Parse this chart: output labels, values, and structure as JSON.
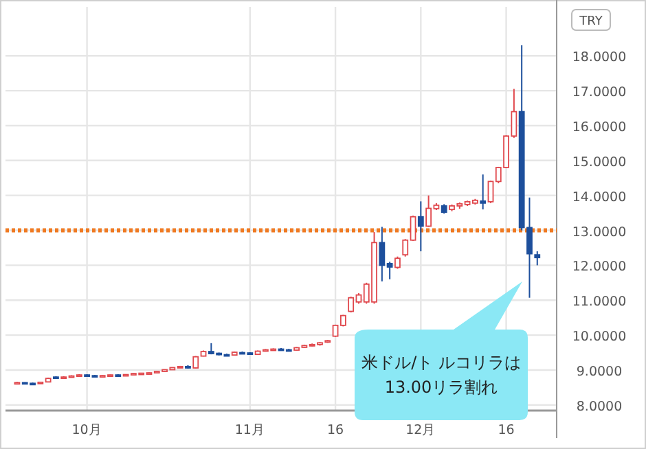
{
  "chart_data": {
    "type": "candlestick",
    "categories": [
      null,
      null,
      null,
      null,
      null,
      null,
      null,
      null,
      null,
      "10月",
      null,
      null,
      null,
      null,
      null,
      null,
      null,
      null,
      null,
      null,
      null,
      null,
      null,
      null,
      null,
      null,
      null,
      null,
      null,
      null,
      "11月",
      null,
      null,
      null,
      null,
      null,
      null,
      null,
      null,
      null,
      null,
      "16",
      null,
      null,
      null,
      null,
      null,
      null,
      null,
      null,
      null,
      null,
      "12月",
      null,
      null,
      null,
      null,
      null,
      null,
      null,
      null,
      null,
      null,
      "16",
      null,
      null,
      null,
      null
    ],
    "ohlc": [
      [
        8.62,
        8.66,
        8.6,
        8.64
      ],
      [
        8.64,
        8.65,
        8.61,
        8.62
      ],
      [
        8.62,
        8.64,
        8.6,
        8.61
      ],
      [
        8.62,
        8.66,
        8.61,
        8.65
      ],
      [
        8.66,
        8.78,
        8.65,
        8.76
      ],
      [
        8.8,
        8.82,
        8.77,
        8.78
      ],
      [
        8.79,
        8.82,
        8.77,
        8.8
      ],
      [
        8.8,
        8.85,
        8.79,
        8.83
      ],
      [
        8.83,
        8.88,
        8.82,
        8.86
      ],
      [
        8.86,
        8.88,
        8.83,
        8.84
      ],
      [
        8.84,
        8.86,
        8.81,
        8.82
      ],
      [
        8.82,
        8.85,
        8.81,
        8.84
      ],
      [
        8.84,
        8.87,
        8.83,
        8.86
      ],
      [
        8.86,
        8.88,
        8.84,
        8.85
      ],
      [
        8.85,
        8.88,
        8.84,
        8.87
      ],
      [
        8.88,
        8.91,
        8.87,
        8.9
      ],
      [
        8.9,
        8.92,
        8.88,
        8.91
      ],
      [
        8.91,
        8.93,
        8.89,
        8.92
      ],
      [
        8.92,
        8.97,
        8.91,
        8.96
      ],
      [
        8.96,
        9.02,
        8.95,
        9.01
      ],
      [
        9.01,
        9.08,
        9.0,
        9.07
      ],
      [
        9.08,
        9.12,
        9.06,
        9.1
      ],
      [
        9.1,
        9.14,
        9.04,
        9.06
      ],
      [
        9.06,
        9.4,
        9.05,
        9.38
      ],
      [
        9.4,
        9.56,
        9.39,
        9.53
      ],
      [
        9.53,
        9.77,
        9.45,
        9.47
      ],
      [
        9.48,
        9.5,
        9.42,
        9.44
      ],
      [
        9.44,
        9.47,
        9.41,
        9.43
      ],
      [
        9.43,
        9.53,
        9.42,
        9.51
      ],
      [
        9.5,
        9.53,
        9.47,
        9.49
      ],
      [
        9.49,
        9.51,
        9.44,
        9.45
      ],
      [
        9.45,
        9.56,
        9.44,
        9.54
      ],
      [
        9.55,
        9.6,
        9.53,
        9.58
      ],
      [
        9.58,
        9.62,
        9.56,
        9.6
      ],
      [
        9.6,
        9.63,
        9.56,
        9.58
      ],
      [
        9.58,
        9.61,
        9.55,
        9.57
      ],
      [
        9.57,
        9.66,
        9.56,
        9.64
      ],
      [
        9.65,
        9.72,
        9.64,
        9.7
      ],
      [
        9.7,
        9.76,
        9.68,
        9.73
      ],
      [
        9.73,
        9.8,
        9.7,
        9.78
      ],
      [
        9.8,
        9.86,
        9.78,
        9.84
      ],
      [
        9.97,
        10.3,
        9.95,
        10.28
      ],
      [
        10.28,
        10.58,
        10.25,
        10.56
      ],
      [
        10.68,
        11.1,
        10.65,
        11.07
      ],
      [
        10.95,
        11.2,
        10.9,
        11.15
      ],
      [
        10.95,
        11.5,
        10.9,
        11.46
      ],
      [
        10.95,
        12.95,
        10.9,
        12.65
      ],
      [
        12.65,
        13.1,
        11.54,
        12.0
      ],
      [
        12.05,
        12.1,
        11.6,
        11.95
      ],
      [
        11.94,
        12.25,
        11.9,
        12.2
      ],
      [
        12.3,
        12.75,
        12.25,
        12.72
      ],
      [
        12.72,
        13.42,
        12.7,
        13.39
      ],
      [
        13.39,
        13.83,
        12.4,
        13.12
      ],
      [
        13.12,
        14.0,
        13.1,
        13.63
      ],
      [
        13.62,
        13.78,
        13.58,
        13.72
      ],
      [
        13.7,
        13.75,
        13.48,
        13.52
      ],
      [
        13.6,
        13.74,
        13.55,
        13.7
      ],
      [
        13.7,
        13.8,
        13.62,
        13.76
      ],
      [
        13.74,
        13.85,
        13.7,
        13.82
      ],
      [
        13.78,
        13.9,
        13.74,
        13.86
      ],
      [
        13.84,
        14.6,
        13.6,
        13.78
      ],
      [
        13.82,
        14.42,
        13.78,
        14.4
      ],
      [
        14.4,
        14.82,
        14.35,
        14.8
      ],
      [
        14.8,
        15.72,
        14.78,
        15.7
      ],
      [
        15.7,
        17.05,
        15.65,
        16.4
      ],
      [
        16.4,
        18.3,
        13.0,
        13.08
      ],
      [
        13.08,
        13.94,
        11.07,
        12.33
      ],
      [
        12.3,
        12.4,
        12.0,
        12.22
      ]
    ],
    "colors": [
      "#e0474c",
      "#1d4f9c",
      "#1d4f9c",
      "#e0474c",
      "#e0474c",
      "#1d4f9c",
      "#e0474c",
      "#e0474c",
      "#e0474c",
      "#1d4f9c",
      "#1d4f9c",
      "#e0474c",
      "#e0474c",
      "#1d4f9c",
      "#e0474c",
      "#e0474c",
      "#e0474c",
      "#e0474c",
      "#e0474c",
      "#e0474c",
      "#e0474c",
      "#e0474c",
      "#1d4f9c",
      "#e0474c",
      "#e0474c",
      "#1d4f9c",
      "#1d4f9c",
      "#1d4f9c",
      "#e0474c",
      "#1d4f9c",
      "#1d4f9c",
      "#e0474c",
      "#e0474c",
      "#e0474c",
      "#1d4f9c",
      "#1d4f9c",
      "#e0474c",
      "#e0474c",
      "#e0474c",
      "#e0474c",
      "#e0474c",
      "#e0474c",
      "#e0474c",
      "#e0474c",
      "#e0474c",
      "#e0474c",
      "#e0474c",
      "#1d4f9c",
      "#1d4f9c",
      "#e0474c",
      "#e0474c",
      "#e0474c",
      "#1d4f9c",
      "#e0474c",
      "#e0474c",
      "#1d4f9c",
      "#e0474c",
      "#e0474c",
      "#e0474c",
      "#e0474c",
      "#1d4f9c",
      "#e0474c",
      "#e0474c",
      "#e0474c",
      "#e0474c",
      "#1d4f9c",
      "#1d4f9c",
      "#1d4f9c"
    ],
    "ylabel": "TRY",
    "ylim": [
      7.84,
      19.4
    ],
    "yticks": [
      {
        "value": 8,
        "label": "8.0000"
      },
      {
        "value": 9,
        "label": "9.0000"
      },
      {
        "value": 10,
        "label": "10.0000"
      },
      {
        "value": 11,
        "label": "11.0000"
      },
      {
        "value": 12,
        "label": "12.0000"
      },
      {
        "value": 13,
        "label": "13.0000"
      },
      {
        "value": 14,
        "label": "14.0000"
      },
      {
        "value": 15,
        "label": "15.0000"
      },
      {
        "value": 16,
        "label": "16.0000"
      },
      {
        "value": 17,
        "label": "17.0000"
      },
      {
        "value": 18,
        "label": "18.0000"
      }
    ],
    "grid": true,
    "ref_lines": [
      {
        "axis": "y",
        "value": 13,
        "color": "#f07a22",
        "line_style": "dotted"
      }
    ],
    "annotations": [
      "米ドル/ト ルコリラは 13.00リラ割れ"
    ]
  }
}
